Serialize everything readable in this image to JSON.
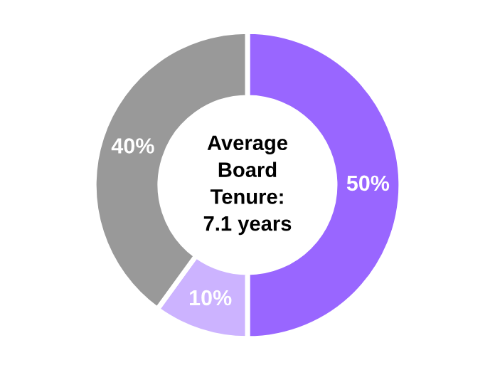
{
  "chart_data": {
    "type": "donut",
    "categories": [
      null,
      null,
      null
    ],
    "values": [
      50,
      10,
      40
    ],
    "colors": [
      "#9966ff",
      "#ccb3ff",
      "#999999"
    ],
    "value_labels": [
      "50%",
      "10%",
      "40%"
    ],
    "annotations": [
      "Average\nBoard\nTenure:\n7.1 years"
    ]
  }
}
